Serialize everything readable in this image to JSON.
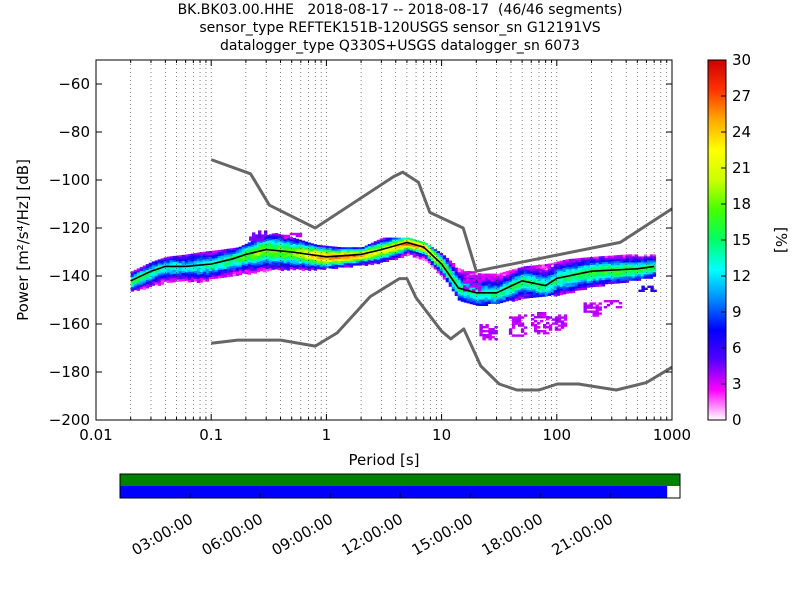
{
  "header": {
    "line1": "BK.BK03.00.HHE   2018-08-17 -- 2018-08-17  (46/46 segments)",
    "line2": "sensor_type REFTEK151B-120USGS sensor_sn G12191VS",
    "line3": "datalogger_type Q330S+USGS datalogger_sn 6073"
  },
  "chart_data": [
    {
      "type": "heatmap",
      "title": "BK.BK03.00.HHE   2018-08-17 -- 2018-08-17  (46/46 segments)",
      "xlabel": "Period [s]",
      "ylabel": "Power [m²/s⁴/Hz] [dB]",
      "x_scale": "log",
      "xlim": [
        0.01,
        1000
      ],
      "ylim": [
        -200,
        -50
      ],
      "x_ticks": [
        0.01,
        0.1,
        1,
        10,
        100,
        1000
      ],
      "x_tick_labels": [
        "0.01",
        "0.1",
        "1",
        "10",
        "100",
        "1000"
      ],
      "y_ticks": [
        -200,
        -180,
        -160,
        -140,
        -120,
        -100,
        -80,
        -60
      ],
      "y_tick_labels": [
        "−200",
        "−180",
        "−160",
        "−140",
        "−120",
        "−100",
        "−80",
        "−60"
      ],
      "grid": "dotted vertical at log sub-decades",
      "colorbar": {
        "label": "[%]",
        "min": 0,
        "max": 30,
        "ticks": [
          0,
          3,
          6,
          9,
          12,
          15,
          18,
          21,
          24,
          27,
          30
        ],
        "colors": [
          "#ffffff",
          "#ff00ff",
          "#5500ff",
          "#0000ff",
          "#0088ff",
          "#00ffff",
          "#00ff66",
          "#44ff00",
          "#ccff00",
          "#ffff00",
          "#ffaa00",
          "#ff3300",
          "#cc0000"
        ]
      },
      "noise_model_high": {
        "name": "NHNM",
        "color": "#666666",
        "points": [
          [
            0.1,
            -91.5
          ],
          [
            0.22,
            -97.4
          ],
          [
            0.32,
            -110.5
          ],
          [
            0.8,
            -120
          ],
          [
            3.8,
            -98.7
          ],
          [
            4.6,
            -96.7
          ],
          [
            6.3,
            -101
          ],
          [
            7.9,
            -113.5
          ],
          [
            15.4,
            -120
          ],
          [
            20,
            -138
          ],
          [
            354.8,
            -126
          ],
          [
            1000,
            -112
          ]
        ]
      },
      "noise_model_low": {
        "name": "NLNM",
        "color": "#666666",
        "points": [
          [
            0.1,
            -168
          ],
          [
            0.17,
            -166.7
          ],
          [
            0.4,
            -166.7
          ],
          [
            0.8,
            -169.2
          ],
          [
            1.24,
            -163.7
          ],
          [
            2.4,
            -148.6
          ],
          [
            4.3,
            -141.1
          ],
          [
            5,
            -141.1
          ],
          [
            6,
            -149
          ],
          [
            10,
            -163
          ],
          [
            12,
            -166.2
          ],
          [
            15.6,
            -162.1
          ],
          [
            21.9,
            -177.5
          ],
          [
            31.6,
            -185
          ],
          [
            45,
            -187.5
          ],
          [
            70,
            -187.5
          ],
          [
            101,
            -185
          ],
          [
            154,
            -185
          ],
          [
            328,
            -187.5
          ],
          [
            600,
            -184.4
          ],
          [
            1000,
            -178
          ]
        ]
      },
      "mean_curve": {
        "color": "#000000",
        "points": [
          [
            0.02,
            -142
          ],
          [
            0.03,
            -138
          ],
          [
            0.04,
            -136
          ],
          [
            0.06,
            -136
          ],
          [
            0.1,
            -135
          ],
          [
            0.15,
            -133
          ],
          [
            0.2,
            -131
          ],
          [
            0.3,
            -129
          ],
          [
            0.5,
            -130
          ],
          [
            1,
            -132
          ],
          [
            2,
            -131
          ],
          [
            3,
            -129
          ],
          [
            5,
            -126
          ],
          [
            7,
            -128
          ],
          [
            10,
            -135
          ],
          [
            14,
            -145
          ],
          [
            20,
            -147
          ],
          [
            30,
            -147
          ],
          [
            50,
            -142
          ],
          [
            80,
            -144
          ],
          [
            100,
            -141
          ],
          [
            200,
            -138
          ],
          [
            500,
            -137
          ],
          [
            700,
            -136
          ]
        ]
      },
      "density_series": [
        {
          "x": 0.02,
          "low": -146,
          "high": -138,
          "peak": 16
        },
        {
          "x": 0.03,
          "low": -144,
          "high": -134,
          "peak": 14
        },
        {
          "x": 0.04,
          "low": -142,
          "high": -132,
          "peak": 13
        },
        {
          "x": 0.06,
          "low": -142,
          "high": -131,
          "peak": 12
        },
        {
          "x": 0.08,
          "low": -142,
          "high": -130,
          "peak": 13
        },
        {
          "x": 0.12,
          "low": -140,
          "high": -129,
          "peak": 14
        },
        {
          "x": 0.17,
          "low": -139,
          "high": -128,
          "peak": 16
        },
        {
          "x": 0.25,
          "low": -138,
          "high": -124,
          "peak": 18
        },
        {
          "x": 0.35,
          "low": -137,
          "high": -122,
          "peak": 17
        },
        {
          "x": 0.5,
          "low": -137,
          "high": -124,
          "peak": 18
        },
        {
          "x": 0.8,
          "low": -137,
          "high": -127,
          "peak": 24
        },
        {
          "x": 1.3,
          "low": -136,
          "high": -128,
          "peak": 26
        },
        {
          "x": 2,
          "low": -135,
          "high": -128,
          "peak": 24
        },
        {
          "x": 3,
          "low": -134,
          "high": -124,
          "peak": 20
        },
        {
          "x": 5,
          "low": -131,
          "high": -124,
          "peak": 26
        },
        {
          "x": 7,
          "low": -133,
          "high": -126,
          "peak": 24
        },
        {
          "x": 10,
          "low": -140,
          "high": -131,
          "peak": 18
        },
        {
          "x": 14,
          "low": -150,
          "high": -137,
          "peak": 14
        },
        {
          "x": 20,
          "low": -152,
          "high": -139,
          "peak": 13
        },
        {
          "x": 30,
          "low": -151,
          "high": -139,
          "peak": 14
        },
        {
          "x": 50,
          "low": -149,
          "high": -136,
          "peak": 15
        },
        {
          "x": 80,
          "low": -148,
          "high": -135,
          "peak": 14
        },
        {
          "x": 120,
          "low": -147,
          "high": -133,
          "peak": 14
        },
        {
          "x": 200,
          "low": -144,
          "high": -132,
          "peak": 16
        },
        {
          "x": 400,
          "low": -142,
          "high": -131,
          "peak": 16
        },
        {
          "x": 700,
          "low": -140,
          "high": -131,
          "peak": 15
        }
      ],
      "outlier_series": [
        {
          "x": 0.25,
          "low": -125,
          "high": -121,
          "peak": 4
        },
        {
          "x": 0.5,
          "low": -124,
          "high": -122,
          "peak": 3
        },
        {
          "x": 18,
          "low": -146,
          "high": -138,
          "peak": 3
        },
        {
          "x": 25,
          "low": -166,
          "high": -160,
          "peak": 3
        },
        {
          "x": 45,
          "low": -165,
          "high": -156,
          "peak": 3
        },
        {
          "x": 70,
          "low": -164,
          "high": -155,
          "peak": 3
        },
        {
          "x": 100,
          "low": -162,
          "high": -156,
          "peak": 3
        },
        {
          "x": 200,
          "low": -156,
          "high": -151,
          "peak": 3
        },
        {
          "x": 300,
          "low": -153,
          "high": -150,
          "peak": 3
        },
        {
          "x": 600,
          "low": -146,
          "high": -144,
          "peak": 6
        }
      ]
    },
    {
      "type": "bar",
      "title": "",
      "x_ticks": [
        "03:00:00",
        "06:00:00",
        "09:00:00",
        "12:00:00",
        "15:00:00",
        "18:00:00",
        "21:00:00"
      ],
      "tick_hours": [
        3,
        6,
        9,
        12,
        15,
        18,
        21
      ],
      "xlim_hours": [
        0,
        24
      ],
      "series": [
        {
          "color": "#008000",
          "start_hour": 0,
          "end_hour": 24
        },
        {
          "color": "#0000ff",
          "start_hour": 0,
          "end_hour": 23.45
        }
      ]
    }
  ]
}
